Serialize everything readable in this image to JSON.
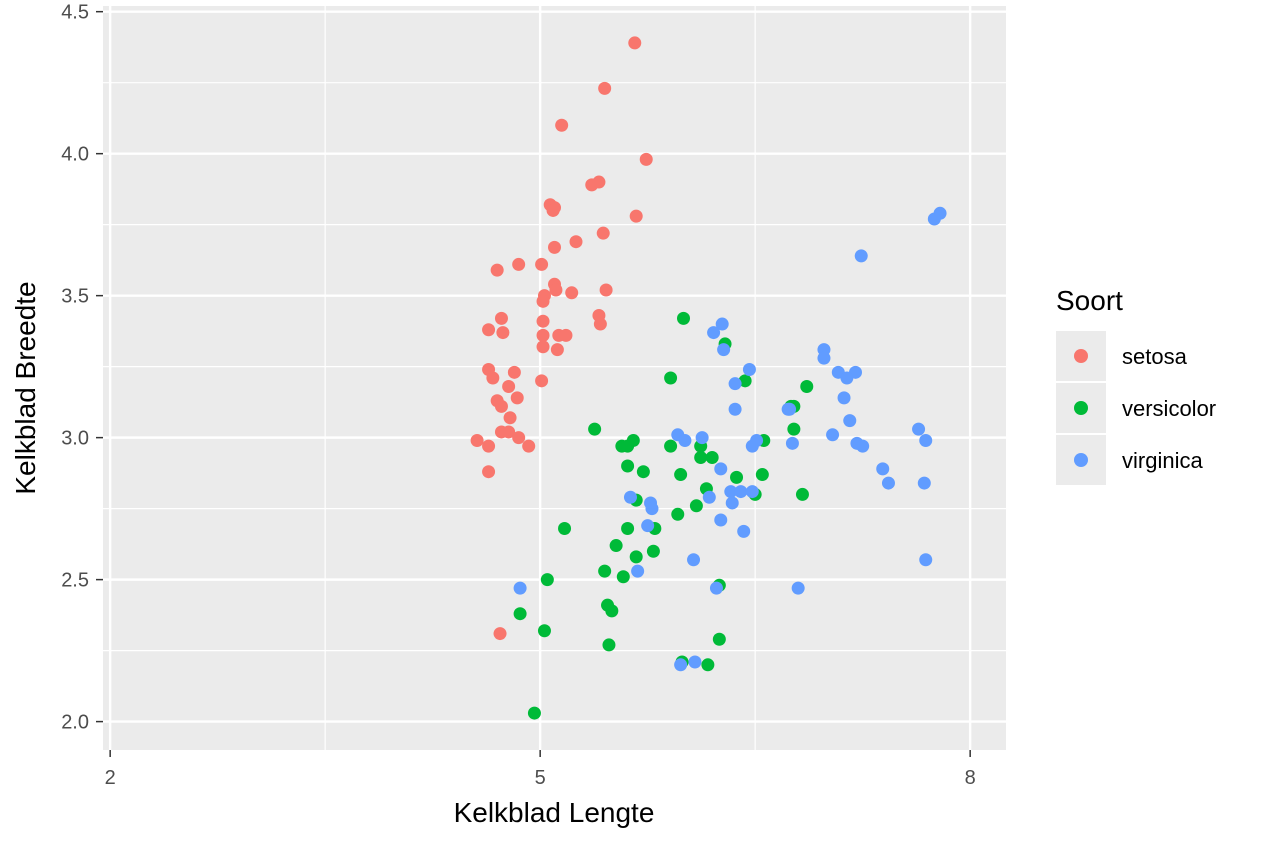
{
  "chart_data": {
    "type": "scatter",
    "title": "",
    "xlabel": "Kelkblad Lengte",
    "ylabel": "Kelkblad Breedte",
    "xlim": [
      1.95,
      8.25
    ],
    "ylim": [
      1.9,
      4.52
    ],
    "x_ticks": [
      2,
      5,
      8
    ],
    "x_tick_labels": [
      "2",
      "5",
      "8"
    ],
    "x_minor_ticks": [
      3.5,
      6.5
    ],
    "y_ticks": [
      2.0,
      2.5,
      3.0,
      3.5,
      4.0,
      4.5
    ],
    "y_tick_labels": [
      "2.0",
      "2.5",
      "3.0",
      "3.5",
      "4.0",
      "4.5"
    ],
    "y_minor_ticks": [
      2.25,
      2.75,
      3.25,
      3.75,
      4.25
    ],
    "grid": true,
    "background": "#ebebeb",
    "legend": {
      "title": "Soort",
      "position": "right"
    },
    "series": [
      {
        "name": "setosa",
        "color": "#f8766d",
        "points": [
          [
            5.66,
            4.39
          ],
          [
            5.45,
            4.23
          ],
          [
            5.74,
            3.98
          ],
          [
            5.15,
            4.1
          ],
          [
            5.36,
            3.89
          ],
          [
            5.41,
            3.9
          ],
          [
            5.07,
            3.82
          ],
          [
            5.1,
            3.81
          ],
          [
            5.09,
            3.8
          ],
          [
            5.67,
            3.78
          ],
          [
            5.44,
            3.72
          ],
          [
            5.25,
            3.69
          ],
          [
            5.1,
            3.67
          ],
          [
            4.85,
            3.61
          ],
          [
            5.01,
            3.61
          ],
          [
            4.7,
            3.59
          ],
          [
            5.1,
            3.54
          ],
          [
            5.11,
            3.52
          ],
          [
            5.46,
            3.52
          ],
          [
            5.22,
            3.51
          ],
          [
            5.03,
            3.5
          ],
          [
            5.02,
            3.48
          ],
          [
            5.41,
            3.43
          ],
          [
            4.73,
            3.42
          ],
          [
            5.02,
            3.41
          ],
          [
            5.42,
            3.4
          ],
          [
            4.64,
            3.38
          ],
          [
            4.74,
            3.37
          ],
          [
            5.02,
            3.36
          ],
          [
            5.13,
            3.36
          ],
          [
            5.18,
            3.36
          ],
          [
            5.02,
            3.32
          ],
          [
            5.12,
            3.31
          ],
          [
            4.64,
            3.24
          ],
          [
            4.82,
            3.23
          ],
          [
            4.67,
            3.21
          ],
          [
            5.01,
            3.2
          ],
          [
            4.78,
            3.18
          ],
          [
            4.7,
            3.13
          ],
          [
            4.84,
            3.14
          ],
          [
            4.73,
            3.11
          ],
          [
            4.79,
            3.07
          ],
          [
            4.73,
            3.02
          ],
          [
            4.78,
            3.02
          ],
          [
            4.85,
            3.0
          ],
          [
            4.56,
            2.99
          ],
          [
            4.64,
            2.97
          ],
          [
            4.92,
            2.97
          ],
          [
            4.64,
            2.88
          ],
          [
            4.72,
            2.31
          ]
        ]
      },
      {
        "name": "versicolor",
        "color": "#00ba38",
        "points": [
          [
            6.0,
            3.42
          ],
          [
            6.29,
            3.33
          ],
          [
            5.91,
            3.21
          ],
          [
            6.43,
            3.2
          ],
          [
            6.75,
            3.11
          ],
          [
            6.77,
            3.11
          ],
          [
            6.86,
            3.18
          ],
          [
            5.38,
            3.03
          ],
          [
            6.77,
            3.03
          ],
          [
            5.65,
            2.99
          ],
          [
            5.57,
            2.97
          ],
          [
            5.61,
            2.97
          ],
          [
            5.91,
            2.97
          ],
          [
            6.12,
            2.97
          ],
          [
            6.56,
            2.99
          ],
          [
            6.12,
            2.93
          ],
          [
            6.2,
            2.93
          ],
          [
            5.61,
            2.9
          ],
          [
            5.72,
            2.88
          ],
          [
            5.98,
            2.87
          ],
          [
            6.37,
            2.86
          ],
          [
            6.55,
            2.87
          ],
          [
            6.16,
            2.82
          ],
          [
            6.5,
            2.8
          ],
          [
            6.83,
            2.8
          ],
          [
            5.67,
            2.78
          ],
          [
            6.09,
            2.76
          ],
          [
            5.96,
            2.73
          ],
          [
            5.17,
            2.68
          ],
          [
            5.61,
            2.68
          ],
          [
            5.8,
            2.68
          ],
          [
            5.53,
            2.62
          ],
          [
            5.79,
            2.6
          ],
          [
            5.67,
            2.58
          ],
          [
            5.45,
            2.53
          ],
          [
            5.58,
            2.51
          ],
          [
            5.05,
            2.5
          ],
          [
            6.25,
            2.48
          ],
          [
            5.47,
            2.41
          ],
          [
            5.5,
            2.39
          ],
          [
            4.86,
            2.38
          ],
          [
            5.03,
            2.32
          ],
          [
            6.25,
            2.29
          ],
          [
            5.48,
            2.27
          ],
          [
            5.99,
            2.21
          ],
          [
            6.17,
            2.2
          ],
          [
            4.96,
            2.03
          ]
        ]
      },
      {
        "name": "virginica",
        "color": "#619cff",
        "points": [
          [
            7.79,
            3.79
          ],
          [
            7.75,
            3.77
          ],
          [
            7.24,
            3.64
          ],
          [
            6.27,
            3.4
          ],
          [
            6.21,
            3.37
          ],
          [
            6.28,
            3.31
          ],
          [
            6.98,
            3.31
          ],
          [
            6.98,
            3.28
          ],
          [
            7.08,
            3.23
          ],
          [
            7.2,
            3.23
          ],
          [
            7.14,
            3.21
          ],
          [
            6.46,
            3.24
          ],
          [
            6.36,
            3.19
          ],
          [
            7.12,
            3.14
          ],
          [
            6.73,
            3.1
          ],
          [
            6.74,
            3.1
          ],
          [
            6.36,
            3.1
          ],
          [
            7.16,
            3.06
          ],
          [
            7.64,
            3.03
          ],
          [
            7.04,
            3.01
          ],
          [
            5.96,
            3.01
          ],
          [
            6.01,
            2.99
          ],
          [
            6.13,
            3.0
          ],
          [
            6.51,
            2.99
          ],
          [
            6.48,
            2.97
          ],
          [
            6.76,
            2.98
          ],
          [
            7.21,
            2.98
          ],
          [
            7.25,
            2.97
          ],
          [
            7.69,
            2.99
          ],
          [
            7.39,
            2.89
          ],
          [
            6.26,
            2.89
          ],
          [
            7.43,
            2.84
          ],
          [
            7.68,
            2.84
          ],
          [
            6.33,
            2.81
          ],
          [
            6.4,
            2.81
          ],
          [
            6.48,
            2.81
          ],
          [
            6.18,
            2.79
          ],
          [
            5.63,
            2.79
          ],
          [
            5.77,
            2.77
          ],
          [
            6.34,
            2.77
          ],
          [
            5.78,
            2.75
          ],
          [
            6.26,
            2.71
          ],
          [
            5.75,
            2.69
          ],
          [
            6.42,
            2.67
          ],
          [
            5.68,
            2.53
          ],
          [
            6.07,
            2.57
          ],
          [
            7.69,
            2.57
          ],
          [
            4.86,
            2.47
          ],
          [
            6.23,
            2.47
          ],
          [
            6.8,
            2.47
          ],
          [
            6.08,
            2.21
          ],
          [
            5.98,
            2.2
          ]
        ]
      }
    ]
  }
}
